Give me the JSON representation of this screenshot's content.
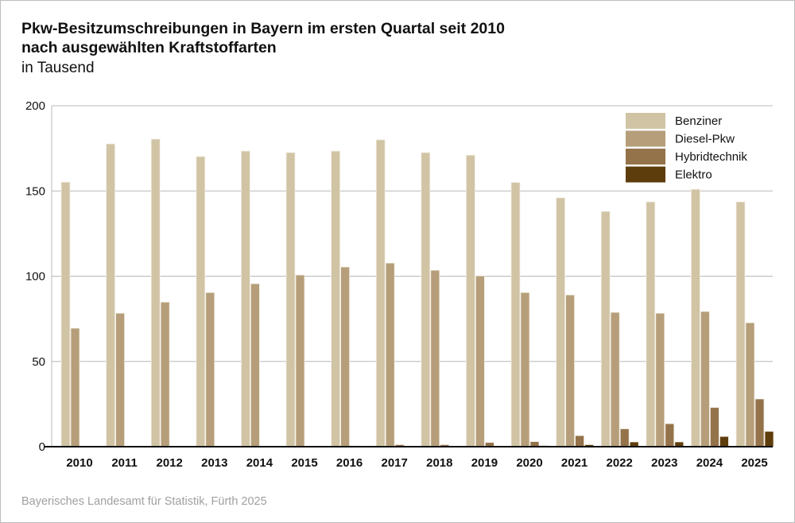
{
  "title_line1": "Pkw-Besitzumschreibungen in Bayern im ersten Quartal seit 2010",
  "title_line2": "nach ausgewählten Kraftstoffarten",
  "unit": "in Tausend",
  "source": "Bayerisches Landesamt für Statistik, Fürth 2025",
  "chart_data": {
    "type": "bar",
    "title": "Pkw-Besitzumschreibungen in Bayern im ersten Quartal seit 2010 nach ausgewählten Kraftstoffarten",
    "ylabel": "in Tausend",
    "ylim": [
      0,
      200
    ],
    "yticks": [
      0,
      50,
      100,
      150,
      200
    ],
    "grid": true,
    "legend": "top-right",
    "categories": [
      "2010",
      "2011",
      "2012",
      "2013",
      "2014",
      "2015",
      "2016",
      "2017",
      "2018",
      "2019",
      "2020",
      "2021",
      "2022",
      "2023",
      "2024",
      "2025"
    ],
    "series": [
      {
        "name": "Benziner",
        "color": "#d1c4a5",
        "values": [
          155.2,
          177.6,
          180.4,
          170.2,
          173.4,
          172.5,
          173.4,
          180.0,
          172.5,
          171.0,
          155.0,
          146.0,
          138.0,
          143.6,
          151.0,
          143.6
        ]
      },
      {
        "name": "Diesel-Pkw",
        "color": "#b59e79",
        "values": [
          69.5,
          78.3,
          84.8,
          90.4,
          95.6,
          100.7,
          105.4,
          107.7,
          103.5,
          100.2,
          90.4,
          89.0,
          78.8,
          78.3,
          79.3,
          72.7
        ]
      },
      {
        "name": "Hybridtechnik",
        "color": "#94724a",
        "values": [
          0.2,
          0.2,
          0.2,
          0.2,
          0.2,
          0.3,
          0.5,
          1.2,
          1.2,
          2.5,
          3.0,
          6.5,
          10.5,
          13.5,
          23.0,
          28.0
        ]
      },
      {
        "name": "Elektro",
        "color": "#5e3d0c",
        "values": [
          0.1,
          0.1,
          0.1,
          0.1,
          0.1,
          0.1,
          0.1,
          0.1,
          0.1,
          0.2,
          0.7,
          1.2,
          2.8,
          2.8,
          6.0,
          9.0
        ]
      }
    ]
  }
}
